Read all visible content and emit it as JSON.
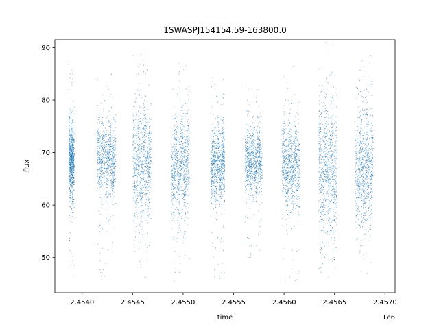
{
  "chart_data": {
    "type": "scatter",
    "title": "1SWASPJ154154.59-163800.0",
    "xlabel": "time",
    "ylabel": "flux",
    "x_offset_label": "1e6",
    "xlim": [
      2453730,
      2457100
    ],
    "ylim": [
      43.3,
      91.5
    ],
    "x_ticks": [
      2454000,
      2454500,
      2455000,
      2455500,
      2456000,
      2456500,
      2457000
    ],
    "x_tick_labels": [
      "2.4540",
      "2.4545",
      "2.4550",
      "2.4555",
      "2.4560",
      "2.4565",
      "2.4570"
    ],
    "y_ticks": [
      50,
      60,
      70,
      80,
      90
    ],
    "y_tick_labels": [
      "50",
      "60",
      "70",
      "80",
      "90"
    ],
    "grid": false,
    "marker_color": "#1f77b4",
    "seasons": [
      {
        "start": 2453865,
        "end": 2453920,
        "center": 68.5,
        "spread": 3.5,
        "outlier_range": [
          46,
          88
        ]
      },
      {
        "start": 2454145,
        "end": 2454330,
        "center": 69.0,
        "spread": 3.5,
        "outlier_range": [
          46.5,
          85.5
        ]
      },
      {
        "start": 2454500,
        "end": 2454680,
        "center": 68.0,
        "spread": 5.5,
        "outlier_range": [
          45.5,
          90
        ]
      },
      {
        "start": 2454880,
        "end": 2455060,
        "center": 67.5,
        "spread": 4.5,
        "outlier_range": [
          45.5,
          87
        ]
      },
      {
        "start": 2455270,
        "end": 2455410,
        "center": 68.0,
        "spread": 3.5,
        "outlier_range": [
          46,
          84.5
        ]
      },
      {
        "start": 2455610,
        "end": 2455780,
        "center": 68.5,
        "spread": 3.0,
        "outlier_range": [
          50,
          83
        ]
      },
      {
        "start": 2455980,
        "end": 2456150,
        "center": 67.5,
        "spread": 4.0,
        "outlier_range": [
          45.5,
          87.5
        ]
      },
      {
        "start": 2456340,
        "end": 2456520,
        "center": 67.0,
        "spread": 6.0,
        "outlier_range": [
          46,
          90
        ]
      },
      {
        "start": 2456700,
        "end": 2456880,
        "center": 67.0,
        "spread": 5.0,
        "outlier_range": [
          46,
          89
        ]
      }
    ]
  }
}
